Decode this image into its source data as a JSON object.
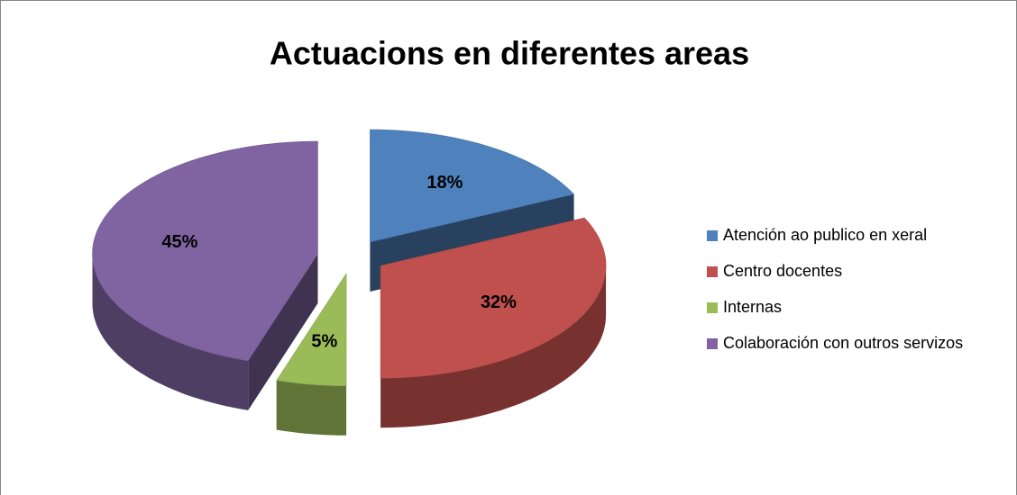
{
  "chart_data": {
    "type": "pie",
    "title": "Actuacions en diferentes areas",
    "categories": [
      "Atención ao publico en xeral",
      "Centro docentes",
      "Internas",
      "Colaboración con outros servizos"
    ],
    "values": [
      18,
      32,
      5,
      45
    ],
    "value_labels": [
      "18%",
      "32%",
      "5%",
      "45%"
    ],
    "colors": [
      "#4f81bd",
      "#c0504d",
      "#9bbb59",
      "#8064a2"
    ],
    "legend": "right"
  }
}
